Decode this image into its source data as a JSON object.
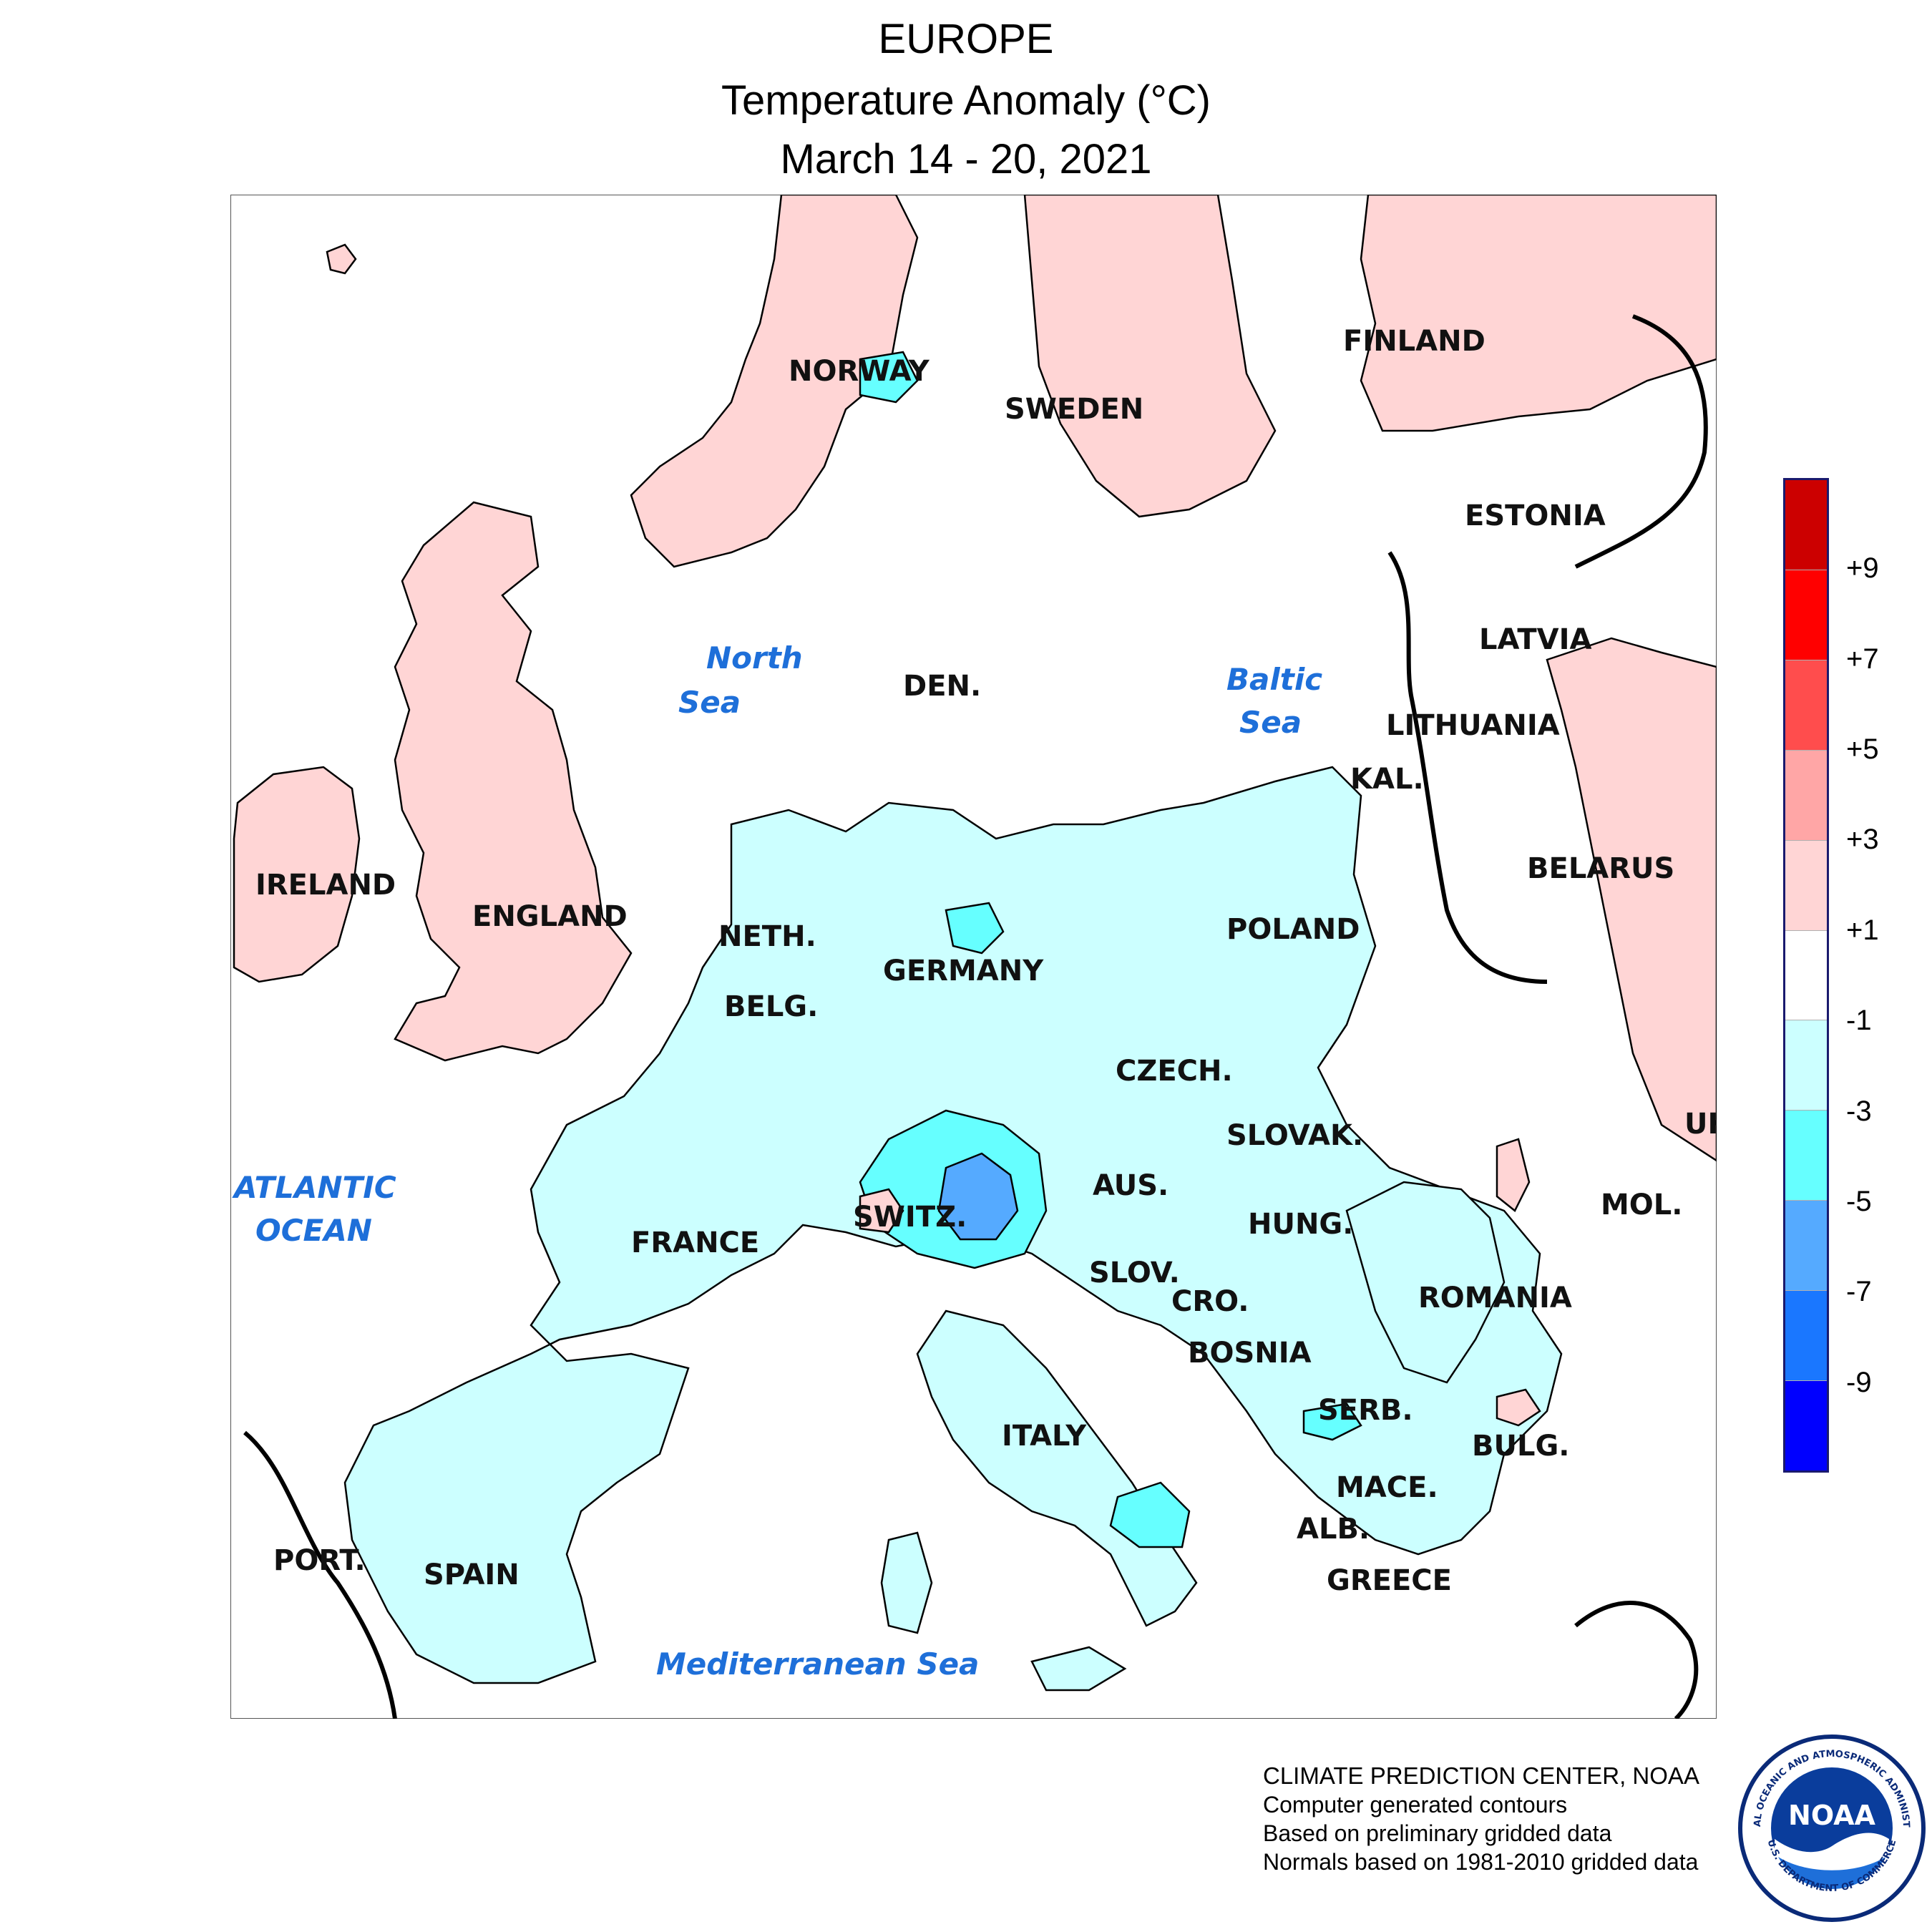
{
  "title": {
    "line1": "EUROPE",
    "line2": "Temperature Anomaly (°C)",
    "line3": "March 14 - 20, 2021"
  },
  "countries": {
    "finland": "FINLAND",
    "norway": "NORWAY",
    "sweden": "SWEDEN",
    "estonia": "ESTONIA",
    "latvia": "LATVIA",
    "lithuania": "LITHUANIA",
    "kaliningrad": "KAL.",
    "belarus": "BELARUS",
    "denmark": "DEN.",
    "ireland": "IRELAND",
    "england": "ENGLAND",
    "netherlands": "NETH.",
    "belgium": "BELG.",
    "germany": "GERMANY",
    "poland": "POLAND",
    "czech": "CZECH.",
    "slovakia": "SLOVAK.",
    "ukraine": "UK",
    "moldova": "MOL.",
    "austria": "AUS.",
    "switzerland": "SWITZ.",
    "france": "FRANCE",
    "hungary": "HUNG.",
    "slovenia": "SLOV.",
    "croatia": "CRO.",
    "romania": "ROMANIA",
    "bosnia": "BOSNIA",
    "serbia": "SERB.",
    "bulgaria": "BULG.",
    "macedonia": "MACE.",
    "albania": "ALB.",
    "greece": "GREECE",
    "italy": "ITALY",
    "portugal": "PORT.",
    "spain": "SPAIN"
  },
  "seas": {
    "north_sea_1": "North",
    "north_sea_2": "Sea",
    "baltic_sea_1": "Baltic",
    "baltic_sea_2": "Sea",
    "atlantic_1": "ATLANTIC",
    "atlantic_2": "OCEAN",
    "mediterranean": "Mediterranean Sea"
  },
  "legend": {
    "ticks": [
      "+9",
      "+7",
      "+5",
      "+3",
      "+1",
      "-1",
      "-3",
      "-5",
      "-7",
      "-9"
    ],
    "colors": [
      "#cc0000",
      "#ff0000",
      "#ff4d4d",
      "#ffa6a6",
      "#ffd5d5",
      "#ffffff",
      "#ccffff",
      "#66ffff",
      "#55aaff",
      "#1a77ff",
      "#0000ff"
    ]
  },
  "credits": {
    "line1": "CLIMATE PREDICTION CENTER, NOAA",
    "line2": "Computer generated contours",
    "line3": "Based on preliminary gridded data",
    "line4": "Normals based on 1981-2010 gridded data"
  },
  "logo": {
    "text": "NOAA",
    "ring_top": "NATIONAL OCEANIC AND ATMOSPHERIC ADMINISTRATION",
    "ring_bottom": "U.S. DEPARTMENT OF COMMERCE"
  },
  "colors": {
    "warm_fill": "#ffd5d5",
    "cool_fill": "#ccffff",
    "cold_fill": "#66ffff",
    "very_cold_fill": "#55aaff",
    "sea_label": "#1e6fd9"
  }
}
